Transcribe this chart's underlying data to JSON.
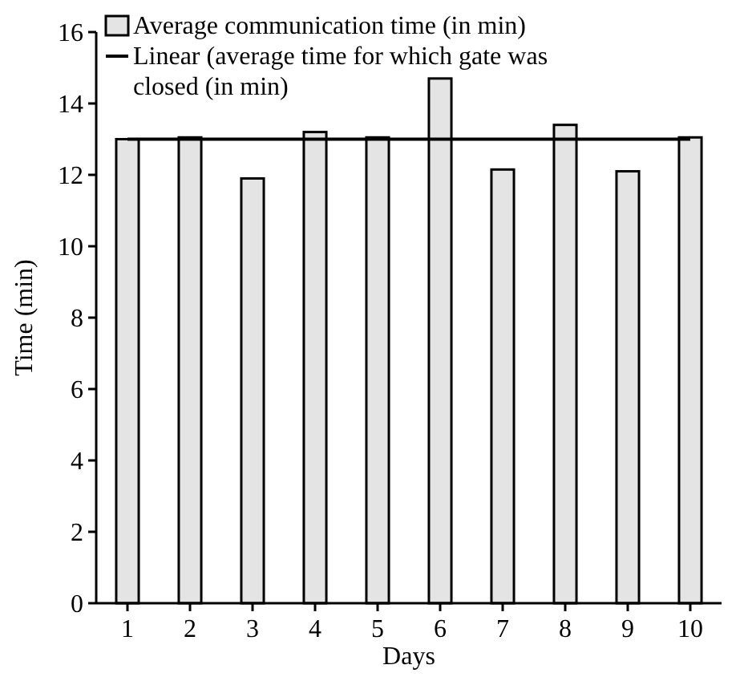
{
  "chart_data": {
    "type": "bar",
    "xlabel": "Days",
    "ylabel": "Time (min)",
    "categories": [
      "1",
      "2",
      "3",
      "4",
      "5",
      "6",
      "7",
      "8",
      "9",
      "10"
    ],
    "series": [
      {
        "name": "Average communication time (in min)",
        "color": "#e4e4e4",
        "values": [
          13.0,
          13.05,
          11.9,
          13.2,
          13.05,
          14.7,
          12.15,
          13.4,
          12.1,
          13.05
        ]
      },
      {
        "name": "Linear (average time for which gate was closed (in min)",
        "type": "line",
        "color": "#000000",
        "values": [
          13,
          13,
          13,
          13,
          13,
          13,
          13,
          13,
          13,
          13
        ]
      }
    ],
    "ylim": [
      0,
      16
    ],
    "yticks": [
      0,
      2,
      4,
      6,
      8,
      10,
      12,
      14,
      16
    ],
    "legend": "top left",
    "grid": false
  }
}
